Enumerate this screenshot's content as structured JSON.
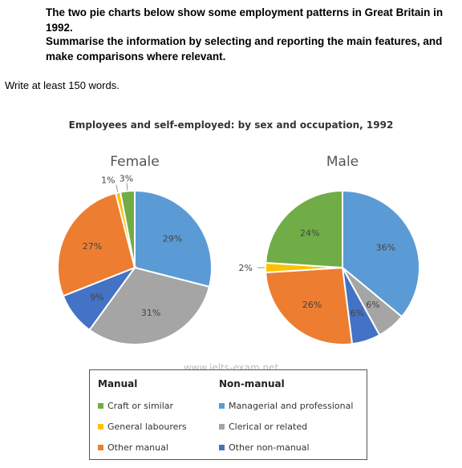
{
  "prompt": {
    "line1": "The two pie charts below show some employment patterns in Great Britain in 1992.",
    "line2": "Summarise the information by selecting and reporting the main features, and make comparisons where relevant.",
    "line3": "Write at least 150 words."
  },
  "watermark": "www.ielts-exam.net",
  "colors": {
    "Craft or similar": "#70ad47",
    "General labourers": "#ffc000",
    "Other manual": "#ed7d31",
    "Managerial and professional": "#5b9bd5",
    "Clerical or related": "#a5a5a5",
    "Other non-manual": "#4472c4"
  },
  "legend": {
    "manual_heading": "Manual",
    "non_manual_heading": "Non-manual",
    "manual_items": [
      "Craft or similar",
      "General labourers",
      "Other manual"
    ],
    "non_manual_items": [
      "Managerial and professional",
      "Clerical or related",
      "Other non-manual"
    ]
  },
  "chart_data": {
    "type": "pie",
    "title": "Employees and self-employed: by sex and occupation, 1992",
    "legend_placement": "bottom",
    "charts": [
      {
        "title": "Female",
        "slices": [
          {
            "label": "Managerial and professional",
            "value": 29,
            "text": "29%"
          },
          {
            "label": "Clerical or related",
            "value": 31,
            "text": "31%"
          },
          {
            "label": "Other non-manual",
            "value": 9,
            "text": "9%"
          },
          {
            "label": "Other manual",
            "value": 27,
            "text": "27%"
          },
          {
            "label": "General labourers",
            "value": 1,
            "text": "1%"
          },
          {
            "label": "Craft or similar",
            "value": 3,
            "text": "3%"
          }
        ]
      },
      {
        "title": "Male",
        "slices": [
          {
            "label": "Managerial and professional",
            "value": 36,
            "text": "36%"
          },
          {
            "label": "Clerical or related",
            "value": 6,
            "text": "6%"
          },
          {
            "label": "Other non-manual",
            "value": 6,
            "text": "6%"
          },
          {
            "label": "Other manual",
            "value": 26,
            "text": "26%"
          },
          {
            "label": "General labourers",
            "value": 2,
            "text": "2%"
          },
          {
            "label": "Craft or similar",
            "value": 24,
            "text": "24%"
          }
        ]
      }
    ]
  }
}
